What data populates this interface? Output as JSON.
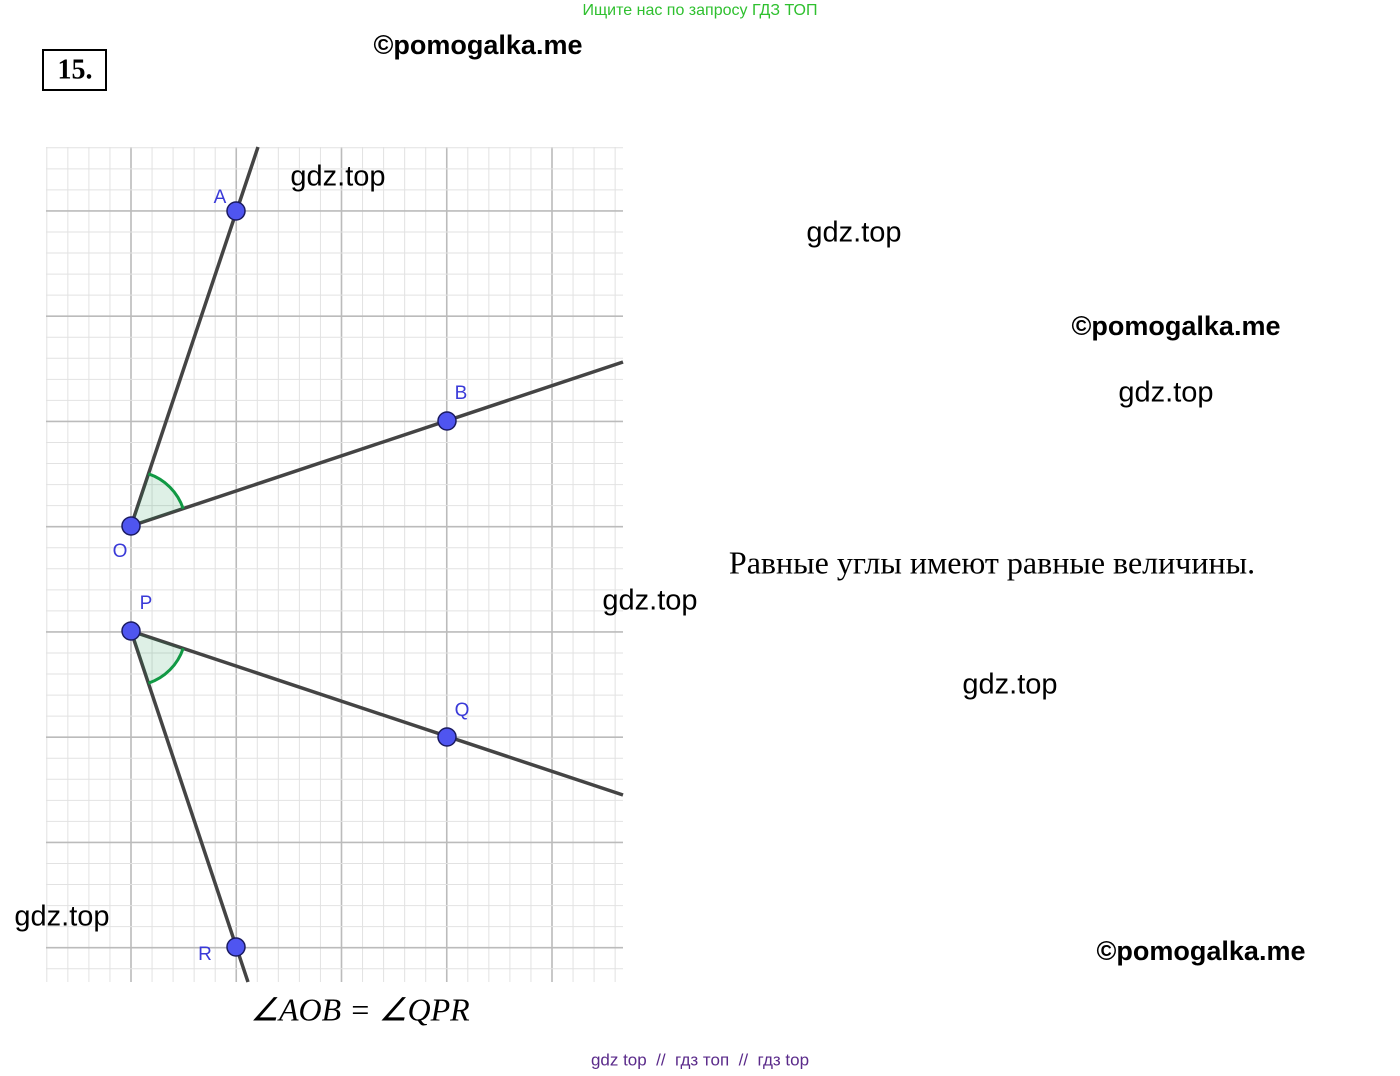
{
  "header_note": "Ищите нас по запросу ГДЗ ТОП",
  "problem_number": "15.",
  "watermarks": [
    "©pomogalka.me",
    "gdz.top",
    "gdz.top",
    "©pomogalka.me",
    "gdz.top",
    "gdz.top",
    "gdz.top",
    "gdz.top",
    "©pomogalka.me"
  ],
  "points": [
    "A",
    "B",
    "O",
    "P",
    "Q",
    "R"
  ],
  "statement": "Равные углы имеют равные величины.",
  "equation": "∠AOB = ∠QPR",
  "footer": "gdz top  //  гдз топ  //  гдз top"
}
